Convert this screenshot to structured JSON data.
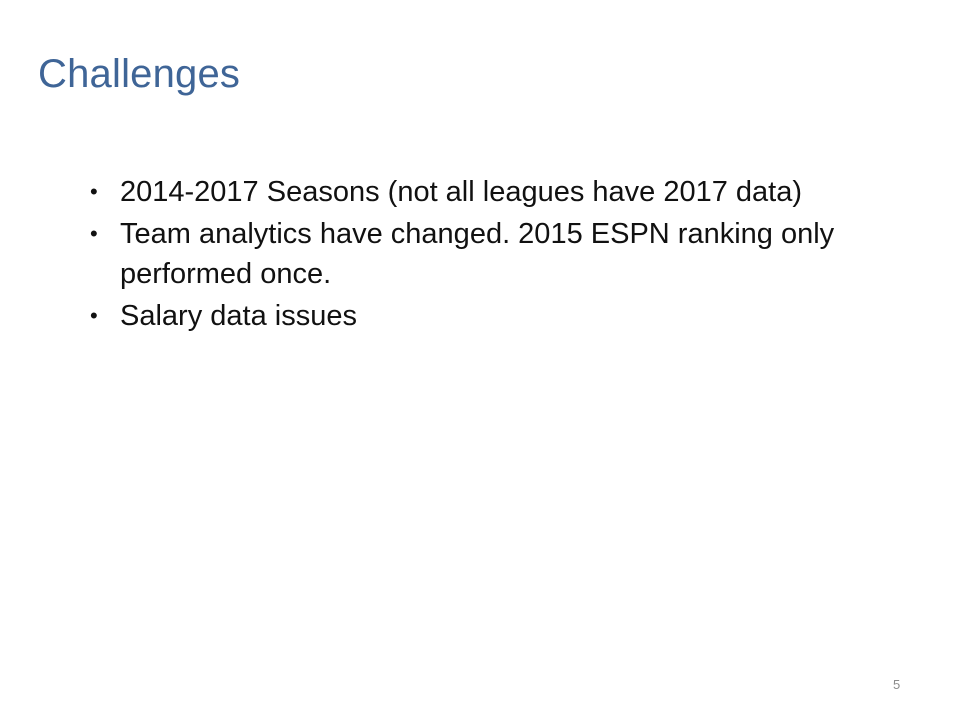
{
  "slide": {
    "title": "Challenges",
    "bullets": [
      "2014-2017 Seasons (not all leagues have 2017 data)",
      "Team analytics have changed. 2015 ESPN ranking only performed once.",
      "Salary data issues"
    ],
    "bullet_glyph": "•",
    "slide_number": "5"
  },
  "colors": {
    "title": "#3f6597",
    "body_text": "#111111",
    "slide_number": "#8c8c8c",
    "background": "#ffffff"
  }
}
